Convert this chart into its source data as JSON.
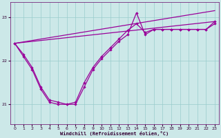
{
  "xlabel": "Windchill (Refroidissement éolien,°C)",
  "bg_color": "#cce8e8",
  "grid_color": "#99cccc",
  "line_color": "#990099",
  "xlim": [
    -0.5,
    23.5
  ],
  "ylim": [
    20.55,
    23.35
  ],
  "yticks": [
    21,
    22,
    23
  ],
  "xticks": [
    0,
    1,
    2,
    3,
    4,
    5,
    6,
    7,
    8,
    9,
    10,
    11,
    12,
    13,
    14,
    15,
    16,
    17,
    18,
    19,
    20,
    21,
    22,
    23
  ],
  "series1_x": [
    0,
    1,
    2,
    3,
    4,
    5,
    6,
    7,
    8,
    9,
    10,
    11,
    12,
    13,
    14,
    15,
    16,
    17,
    18,
    19,
    20,
    21,
    22,
    23
  ],
  "series1_y": [
    22.4,
    22.15,
    21.85,
    21.4,
    21.1,
    21.05,
    21.0,
    21.05,
    21.5,
    21.85,
    22.1,
    22.3,
    22.5,
    22.7,
    22.85,
    22.65,
    22.72,
    22.72,
    22.72,
    22.72,
    22.72,
    22.72,
    22.72,
    22.85
  ],
  "series2_x": [
    0,
    23
  ],
  "series2_y": [
    22.4,
    22.9
  ],
  "series3_x": [
    0,
    1,
    2,
    3,
    4,
    5,
    6,
    7,
    8,
    9,
    10,
    11,
    12,
    13,
    14,
    15,
    16,
    17,
    18,
    19,
    20,
    21,
    22,
    23
  ],
  "series3_y": [
    22.4,
    22.1,
    21.8,
    21.35,
    21.05,
    21.0,
    21.0,
    21.0,
    21.4,
    21.8,
    22.05,
    22.25,
    22.45,
    22.6,
    23.1,
    22.6,
    22.72,
    22.72,
    22.72,
    22.72,
    22.72,
    22.72,
    22.72,
    22.9
  ],
  "series4_x": [
    0,
    23
  ],
  "series4_y": [
    22.4,
    23.15
  ]
}
